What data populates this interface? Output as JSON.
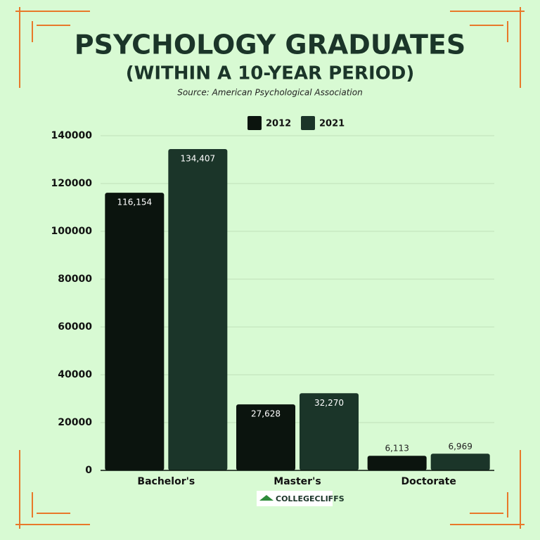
{
  "chart_data": {
    "type": "bar",
    "title": "PSYCHOLOGY GRADUATES",
    "subtitle": "(WITHIN A 10-YEAR PERIOD)",
    "source": "Source: American Psychological Association",
    "branding": "COLLEGECLIFFS",
    "categories": [
      "Bachelor's",
      "Master's",
      "Doctorate"
    ],
    "series": [
      {
        "name": "2012",
        "color": "#0b140e",
        "values": [
          116154,
          27628,
          6113
        ],
        "value_labels": [
          "116,154",
          "27,628",
          "6,113"
        ]
      },
      {
        "name": "2021",
        "color": "#1b3529",
        "values": [
          134407,
          32270,
          6969
        ],
        "value_labels": [
          "134,407",
          "32,270",
          "6,969"
        ]
      }
    ],
    "ylim": [
      0,
      140000
    ],
    "yticks": [
      0,
      20000,
      40000,
      60000,
      80000,
      100000,
      120000,
      140000
    ],
    "grid": true,
    "legend": "top"
  }
}
